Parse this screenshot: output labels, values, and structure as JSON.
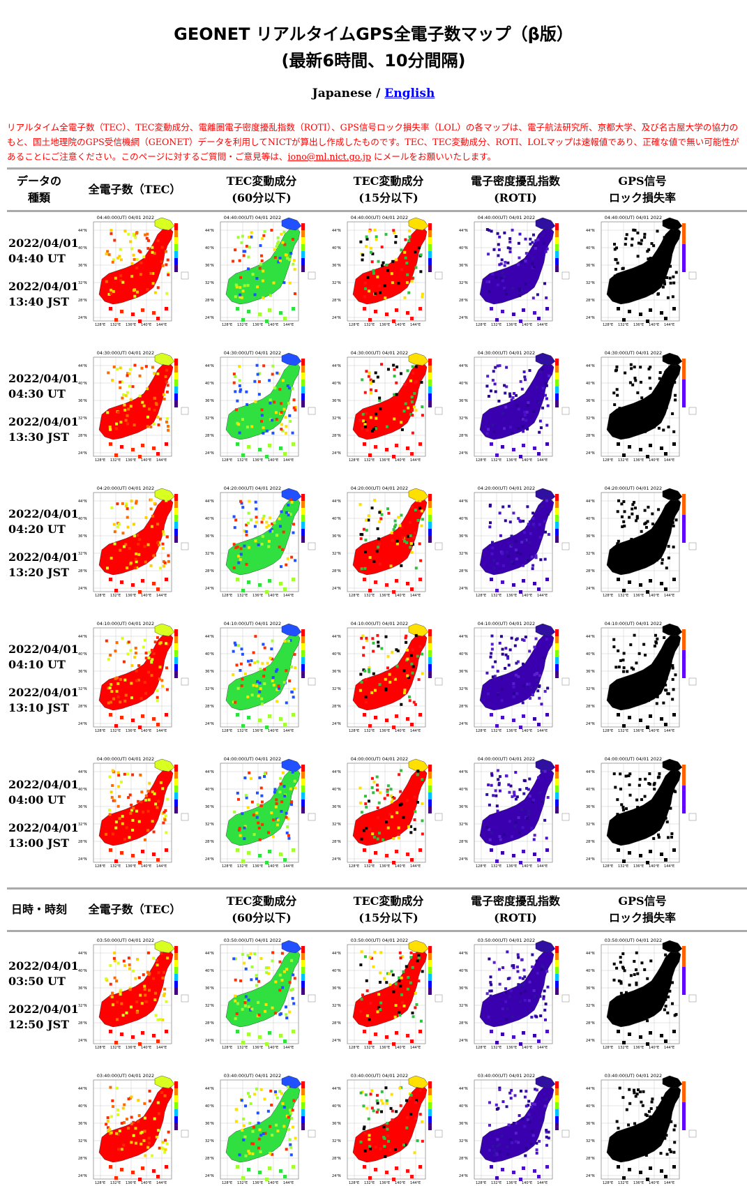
{
  "page": {
    "title_line1": "GEONET リアルタイムGPS全電子数マップ（β版）",
    "title_line2": "(最新6時間、10分間隔)",
    "lang_japanese": "Japanese / ",
    "lang_english": "English",
    "notice_before": "リアルタイム全電子数（TEC）、TEC変動成分、電離圏電子密度擾乱指数（ROTI）、GPS信号ロック損失率（LOL）の各マップは、電子航法研究所、京都大学、及び名古屋大学の協力のもと、国土地理院のGPS受信機網（GEONET）データを利用してNICTが算出し作成したものです。TEC、TEC変動成分、ROTI、LOLマップは速報値であり、正確な値で無い可能性があることにご注意ください。このページに対するご質問・ご意見等は、",
    "notice_email": "iono@ml.nict.go.jp",
    "notice_after": " にメールをお願いいたします。"
  },
  "header1": {
    "col0": "データの\n種類",
    "col1": "全電子数（TEC）",
    "col2": "TEC変動成分\n(60分以下)",
    "col3": "TEC変動成分\n(15分以下)",
    "col4": "電子密度擾乱指数\n(ROTI)",
    "col5": "GPS信号\nロック損失率"
  },
  "header2": {
    "col0": "日時・時刻",
    "col1": "全電子数（TEC）",
    "col2": "TEC変動成分\n(60分以下)",
    "col3": "TEC変動成分\n(15分以下)",
    "col4": "電子密度擾乱指数\n(ROTI)",
    "col5": "GPS信号\nロック損失率"
  },
  "map_labels": {
    "lats": [
      "44°N",
      "40°N",
      "36°N",
      "32°N",
      "28°N",
      "24°N"
    ],
    "lons": [
      "128°E",
      "132°E",
      "136°E",
      "140°E",
      "144°E"
    ]
  },
  "rows": [
    {
      "ut": "2022/04/01\n04:40 UT",
      "jst": "2022/04/01\n13:40 JST",
      "map_title": "04:40:00(UT) 04/01 2022"
    },
    {
      "ut": "2022/04/01\n04:30 UT",
      "jst": "2022/04/01\n13:30 JST",
      "map_title": "04:30:00(UT) 04/01 2022"
    },
    {
      "ut": "2022/04/01\n04:20 UT",
      "jst": "2022/04/01\n13:20 JST",
      "map_title": "04:20:00(UT) 04/01 2022"
    },
    {
      "ut": "2022/04/01\n04:10 UT",
      "jst": "2022/04/01\n13:10 JST",
      "map_title": "04:10:00(UT) 04/01 2022"
    },
    {
      "ut": "2022/04/01\n04:00 UT",
      "jst": "2022/04/01\n13:00 JST",
      "map_title": "04:00:00(UT) 04/01 2022"
    },
    {
      "ut": "2022/04/01\n03:50 UT",
      "jst": "2022/04/01\n12:50 JST",
      "map_title": "03:50:00(UT) 04/01 2022"
    },
    {
      "ut": "",
      "jst": "",
      "map_title": "03:40:00(UT) 04/01 2022"
    }
  ],
  "map_types": [
    {
      "name": "tec-map",
      "colors": [
        "#ff0000",
        "#ff2a00",
        "#ff6a00",
        "#ffd000",
        "#d8ff20"
      ]
    },
    {
      "name": "tec-60min-map",
      "colors": [
        "#30e040",
        "#a0ff30",
        "#ffe000",
        "#ff3000",
        "#2050ff"
      ]
    },
    {
      "name": "tec-15min-map",
      "colors": [
        "#ff0000",
        "#ff1010",
        "#000000",
        "#30c040",
        "#ffe000"
      ]
    },
    {
      "name": "roti-map",
      "colors": [
        "#3a00b0",
        "#4a10c8",
        "#2a0090",
        "#5a20d0",
        "#3010a0"
      ]
    },
    {
      "name": "lol-map",
      "colors": [
        "#000000",
        "#000000",
        "#000000",
        "#000000",
        "#000000"
      ]
    }
  ]
}
